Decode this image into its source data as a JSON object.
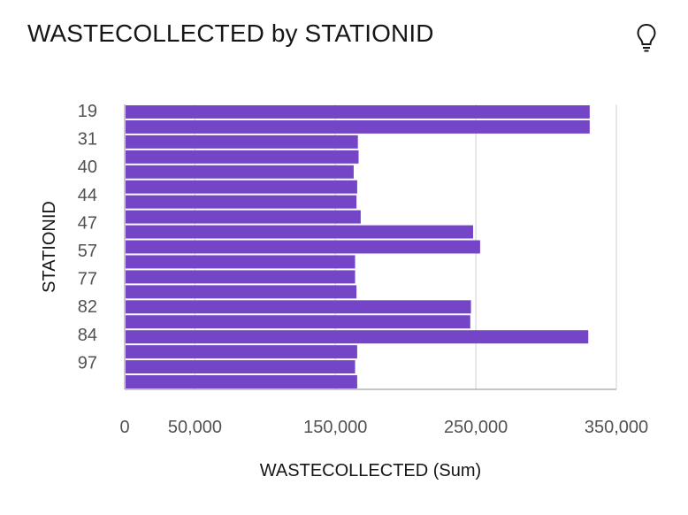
{
  "header": {
    "title": "WASTECOLLECTED by STATIONID",
    "insight_icon": "lightbulb-icon"
  },
  "chart_data": {
    "type": "bar",
    "orientation": "horizontal",
    "xlabel": "WASTECOLLECTED (Sum)",
    "ylabel": "STATIONID",
    "xlim": [
      0,
      350000
    ],
    "x_tick_values": [
      0,
      50000,
      150000,
      250000,
      350000
    ],
    "x_tick_labels": [
      "0",
      "50,000",
      "150,000",
      "250,000",
      "350,000"
    ],
    "y_tick_labels": [
      "19",
      "31",
      "40",
      "44",
      "47",
      "57",
      "77",
      "82",
      "84",
      "97"
    ],
    "grid": true,
    "bar_color": "#7545c8",
    "bar_count": 19,
    "values": [
      331000,
      331000,
      166000,
      166500,
      163000,
      165500,
      165000,
      168000,
      248000,
      253000,
      164000,
      164000,
      165000,
      246500,
      246000,
      330000,
      165500,
      164000,
      165500
    ]
  }
}
